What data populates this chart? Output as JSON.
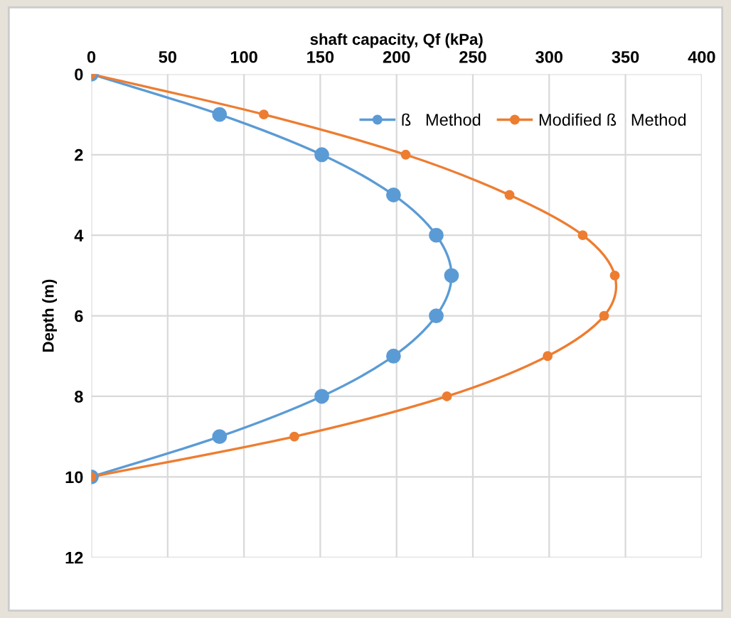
{
  "chart_data": {
    "type": "line",
    "xlabel": "shaft capacity, Qf (kPa)",
    "ylabel": "Depth (m)",
    "xlim": [
      0,
      400
    ],
    "xticks": [
      0,
      50,
      100,
      150,
      200,
      250,
      300,
      350,
      400
    ],
    "ylim": [
      12,
      0
    ],
    "yticks": [
      0,
      2,
      4,
      6,
      8,
      10,
      12
    ],
    "grid": true,
    "legend": "top right",
    "marker": "circle",
    "line_style": "solid",
    "series": [
      {
        "name": "ß   Method",
        "color": "#5b9bd5",
        "x": [
          0,
          84,
          151,
          198,
          226,
          236,
          226,
          198,
          151,
          84,
          0
        ],
        "values": [
          0,
          1,
          2,
          3,
          4,
          5,
          6,
          7,
          8,
          9,
          10
        ]
      },
      {
        "name": "Modified ß   Method",
        "color": "#ed7d31",
        "x": [
          0,
          113,
          206,
          274,
          322,
          343,
          336,
          299,
          233,
          133,
          0
        ],
        "values": [
          0,
          1,
          2,
          3,
          4,
          5,
          6,
          7,
          8,
          9,
          10
        ]
      }
    ]
  }
}
